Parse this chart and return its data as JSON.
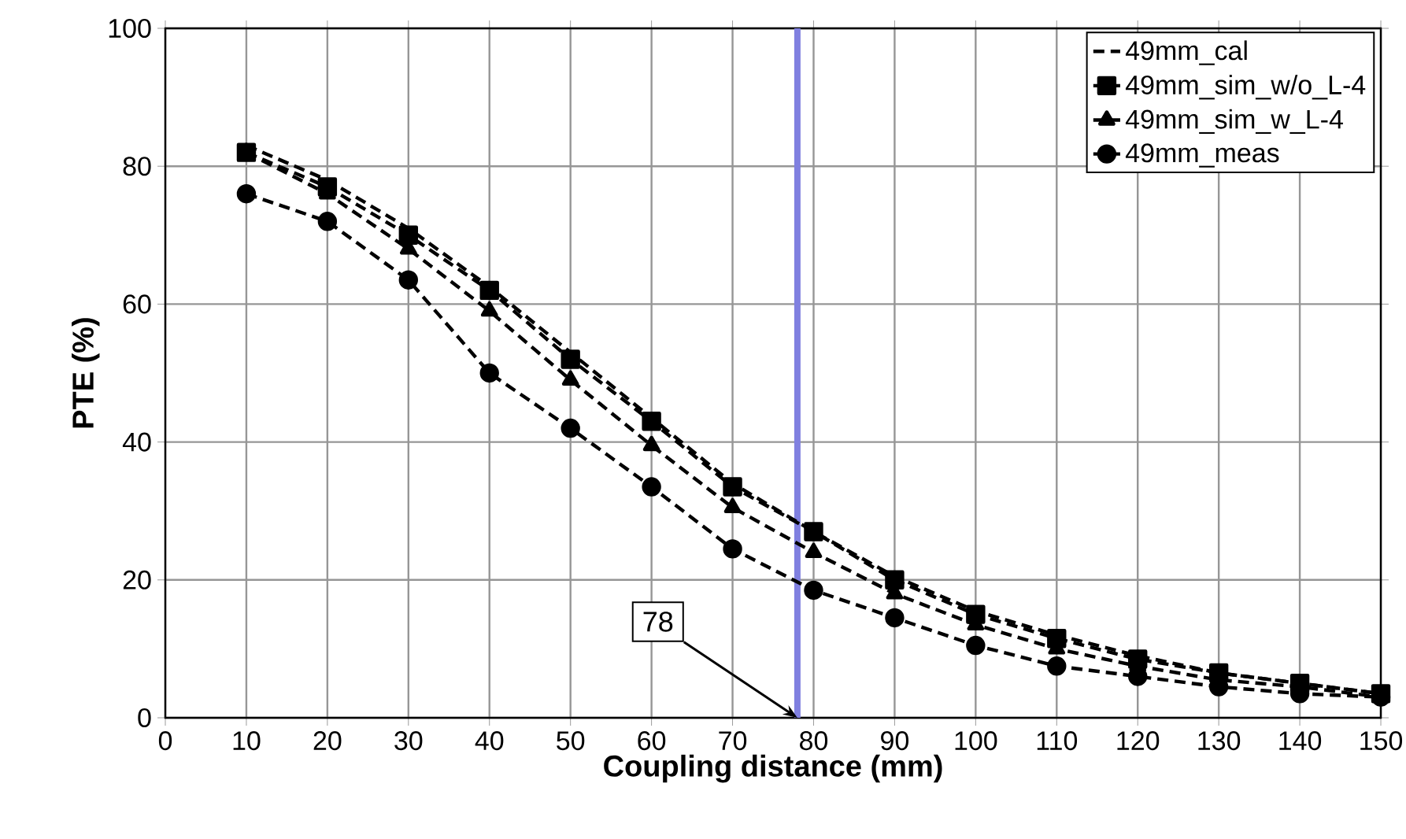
{
  "chart_data": {
    "type": "line",
    "xlabel": "Coupling distance (mm)",
    "ylabel": "PTE (%)",
    "x": [
      10,
      20,
      30,
      40,
      50,
      60,
      70,
      80,
      90,
      100,
      110,
      120,
      130,
      140,
      150
    ],
    "series": [
      {
        "name": "49mm_cal",
        "color": "#000000",
        "marker": "none",
        "values": [
          83,
          78,
          71,
          62.5,
          53,
          43.5,
          34,
          27,
          20.5,
          15.5,
          12,
          9,
          6.5,
          5,
          3.5
        ]
      },
      {
        "name": "49mm_sim_w/o_L-4",
        "color": "#000000",
        "marker": "square",
        "values": [
          82,
          77,
          70,
          62,
          52,
          43,
          33.5,
          27,
          20,
          15,
          11.5,
          8.5,
          6.5,
          5,
          3.5
        ]
      },
      {
        "name": "49mm_sim_w_L-4",
        "color": "#000000",
        "marker": "triangle",
        "values": [
          82,
          76,
          68,
          59,
          49,
          39.5,
          30.5,
          24,
          18,
          13.5,
          10,
          7.5,
          5.5,
          4.5,
          3
        ]
      },
      {
        "name": "49mm_meas",
        "color": "#000000",
        "marker": "circle",
        "values": [
          76,
          72,
          63.5,
          50,
          42,
          33.5,
          24.5,
          18.5,
          14.5,
          10.5,
          7.5,
          6,
          4.5,
          3.5,
          3
        ]
      }
    ],
    "xlim": [
      0,
      150
    ],
    "xticks": [
      0,
      10,
      20,
      30,
      40,
      50,
      60,
      70,
      80,
      90,
      100,
      110,
      120,
      130,
      140,
      150
    ],
    "ylim": [
      0,
      100
    ],
    "yticks": [
      0,
      20,
      40,
      60,
      80,
      100
    ],
    "ref_lines": [
      {
        "axis": "x",
        "value": 78,
        "color": "#8080e0"
      }
    ],
    "annotations": [
      {
        "text": "78",
        "x": 78,
        "y": 0
      }
    ],
    "grid": true,
    "legend": "top right",
    "line_style": "dashed"
  }
}
